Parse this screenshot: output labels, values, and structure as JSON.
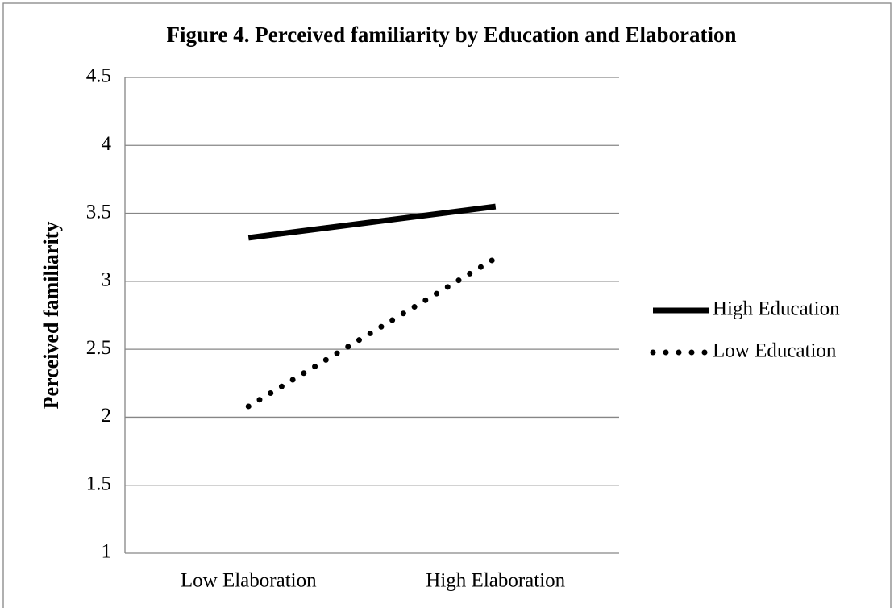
{
  "chart_data": {
    "type": "line",
    "title": "Figure 4. Perceived familiarity by Education and Elaboration",
    "y_label": "Perceived familiarity",
    "categories": [
      "Low Elaboration",
      "High Elaboration"
    ],
    "series": [
      {
        "name": "High Education",
        "color": "#000000",
        "line_style": "solid",
        "values": [
          3.32,
          3.55
        ]
      },
      {
        "name": "Low Education",
        "color": "#000000",
        "line_style": "dotted",
        "values": [
          2.08,
          3.17
        ]
      }
    ],
    "ylim": [
      1,
      4.5
    ],
    "yticks": [
      1,
      1.5,
      2,
      2.5,
      3,
      3.5,
      4,
      4.5
    ],
    "grid": true,
    "legend": "right"
  }
}
